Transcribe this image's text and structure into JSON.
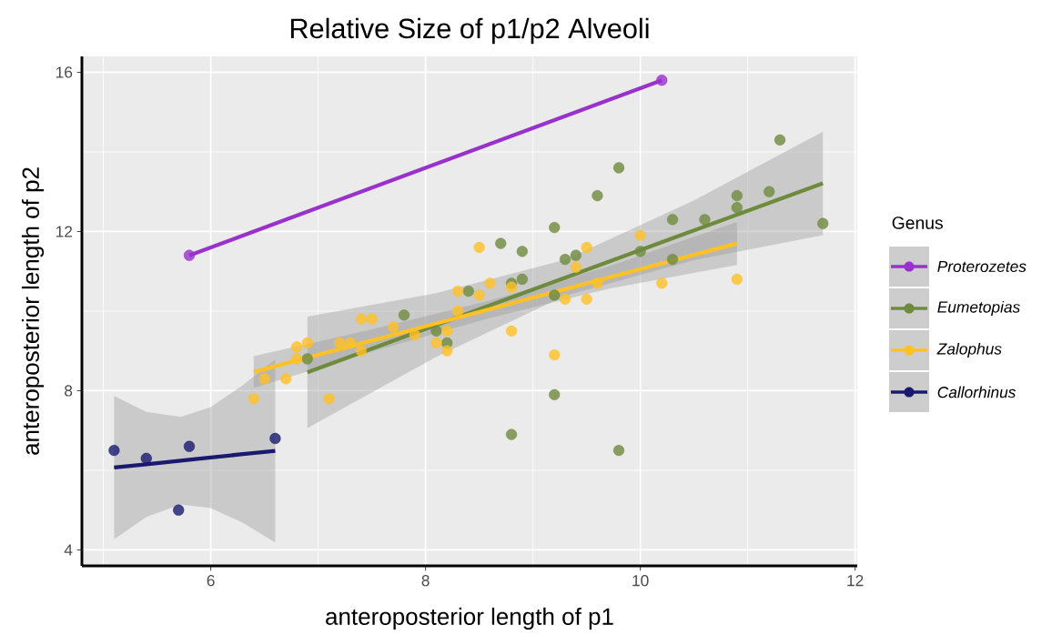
{
  "chart_data": {
    "type": "scatter",
    "title": "Relative Size of p1/p2 Alveoli",
    "xlabel": "anteroposterior length of p1",
    "ylabel": "anteroposterior length of p2",
    "legend_title": "Genus",
    "xlim": [
      4.8,
      12.02
    ],
    "ylim": [
      3.6,
      16.4
    ],
    "xticks": [
      6,
      8,
      10,
      12
    ],
    "yticks": [
      4,
      8,
      12,
      16
    ],
    "grid": true,
    "legend": "right",
    "marker": "circle",
    "series": [
      {
        "name": "Proterozetes",
        "color": "#9932CC",
        "x": [
          5.8,
          10.2
        ],
        "values": [
          11.4,
          15.8
        ]
      },
      {
        "name": "Eumetopias",
        "color": "#6E8B3D",
        "x": [
          6.9,
          7.8,
          8.1,
          8.2,
          8.4,
          8.7,
          8.9,
          8.8,
          8.9,
          9.2,
          9.2,
          9.3,
          9.4,
          9.2,
          8.8,
          9.8,
          9.6,
          9.8,
          10.0,
          10.3,
          10.3,
          10.6,
          10.9,
          10.9,
          11.2,
          11.3,
          11.7
        ],
        "values": [
          8.8,
          9.9,
          9.5,
          9.2,
          10.5,
          11.7,
          11.5,
          10.7,
          10.8,
          12.1,
          10.4,
          11.3,
          11.4,
          7.9,
          6.9,
          6.5,
          12.9,
          13.6,
          11.5,
          12.3,
          11.3,
          12.3,
          12.9,
          12.6,
          13.0,
          14.3,
          12.2
        ]
      },
      {
        "name": "Zalophus",
        "color": "#FFC125",
        "x": [
          6.4,
          6.5,
          6.7,
          6.8,
          6.8,
          6.9,
          7.1,
          7.2,
          7.3,
          7.4,
          7.5,
          7.4,
          7.7,
          7.9,
          8.1,
          8.2,
          8.2,
          8.3,
          8.3,
          8.5,
          8.5,
          8.6,
          8.8,
          8.8,
          9.2,
          9.3,
          9.4,
          9.5,
          9.5,
          9.6,
          10.0,
          10.2,
          10.9
        ],
        "values": [
          7.8,
          8.3,
          8.3,
          9.1,
          8.8,
          9.2,
          7.8,
          9.2,
          9.2,
          9.8,
          9.8,
          9.0,
          9.6,
          9.4,
          9.2,
          9.5,
          9.0,
          10.5,
          10.0,
          11.6,
          10.4,
          10.7,
          10.6,
          9.5,
          8.9,
          10.3,
          11.1,
          11.6,
          10.3,
          10.7,
          11.9,
          10.7,
          10.8
        ]
      },
      {
        "name": "Callorhinus",
        "color": "#191970",
        "x": [
          5.1,
          5.4,
          5.7,
          5.8,
          6.6
        ],
        "values": [
          6.5,
          6.3,
          5.0,
          6.6,
          6.8
        ]
      },
      {
        "type": "line",
        "marker": "none",
        "color": "#9932CC",
        "x": [
          5.8,
          10.2
        ],
        "values": [
          11.4,
          15.8
        ]
      },
      {
        "type": "line",
        "marker": "none",
        "color": "#6E8B3D",
        "x": [
          6.9,
          8.1,
          9.3,
          10.5,
          11.7
        ],
        "values": [
          8.46,
          9.65,
          10.84,
          12.03,
          13.21
        ],
        "lower": [
          7.06,
          8.85,
          10.39,
          11.28,
          11.91
        ],
        "upper": [
          9.86,
          10.45,
          11.29,
          12.78,
          14.51
        ]
      },
      {
        "type": "line",
        "marker": "none",
        "color": "#FFC125",
        "x": [
          6.4,
          7.5,
          8.6,
          9.7,
          10.9
        ],
        "values": [
          8.47,
          9.26,
          10.05,
          10.84,
          11.7
        ],
        "lower": [
          8.07,
          8.98,
          9.83,
          10.56,
          11.16
        ],
        "upper": [
          8.87,
          9.54,
          10.27,
          11.12,
          12.24
        ]
      },
      {
        "type": "line",
        "marker": "none",
        "color": "#191970",
        "x": [
          5.1,
          5.4,
          5.72,
          6.0,
          6.3,
          6.6
        ],
        "values": [
          6.07,
          6.15,
          6.24,
          6.32,
          6.41,
          6.49
        ],
        "lower": [
          4.27,
          4.83,
          5.14,
          5.05,
          4.68,
          4.19
        ],
        "upper": [
          7.87,
          7.47,
          7.34,
          7.59,
          8.14,
          8.79
        ]
      }
    ]
  }
}
